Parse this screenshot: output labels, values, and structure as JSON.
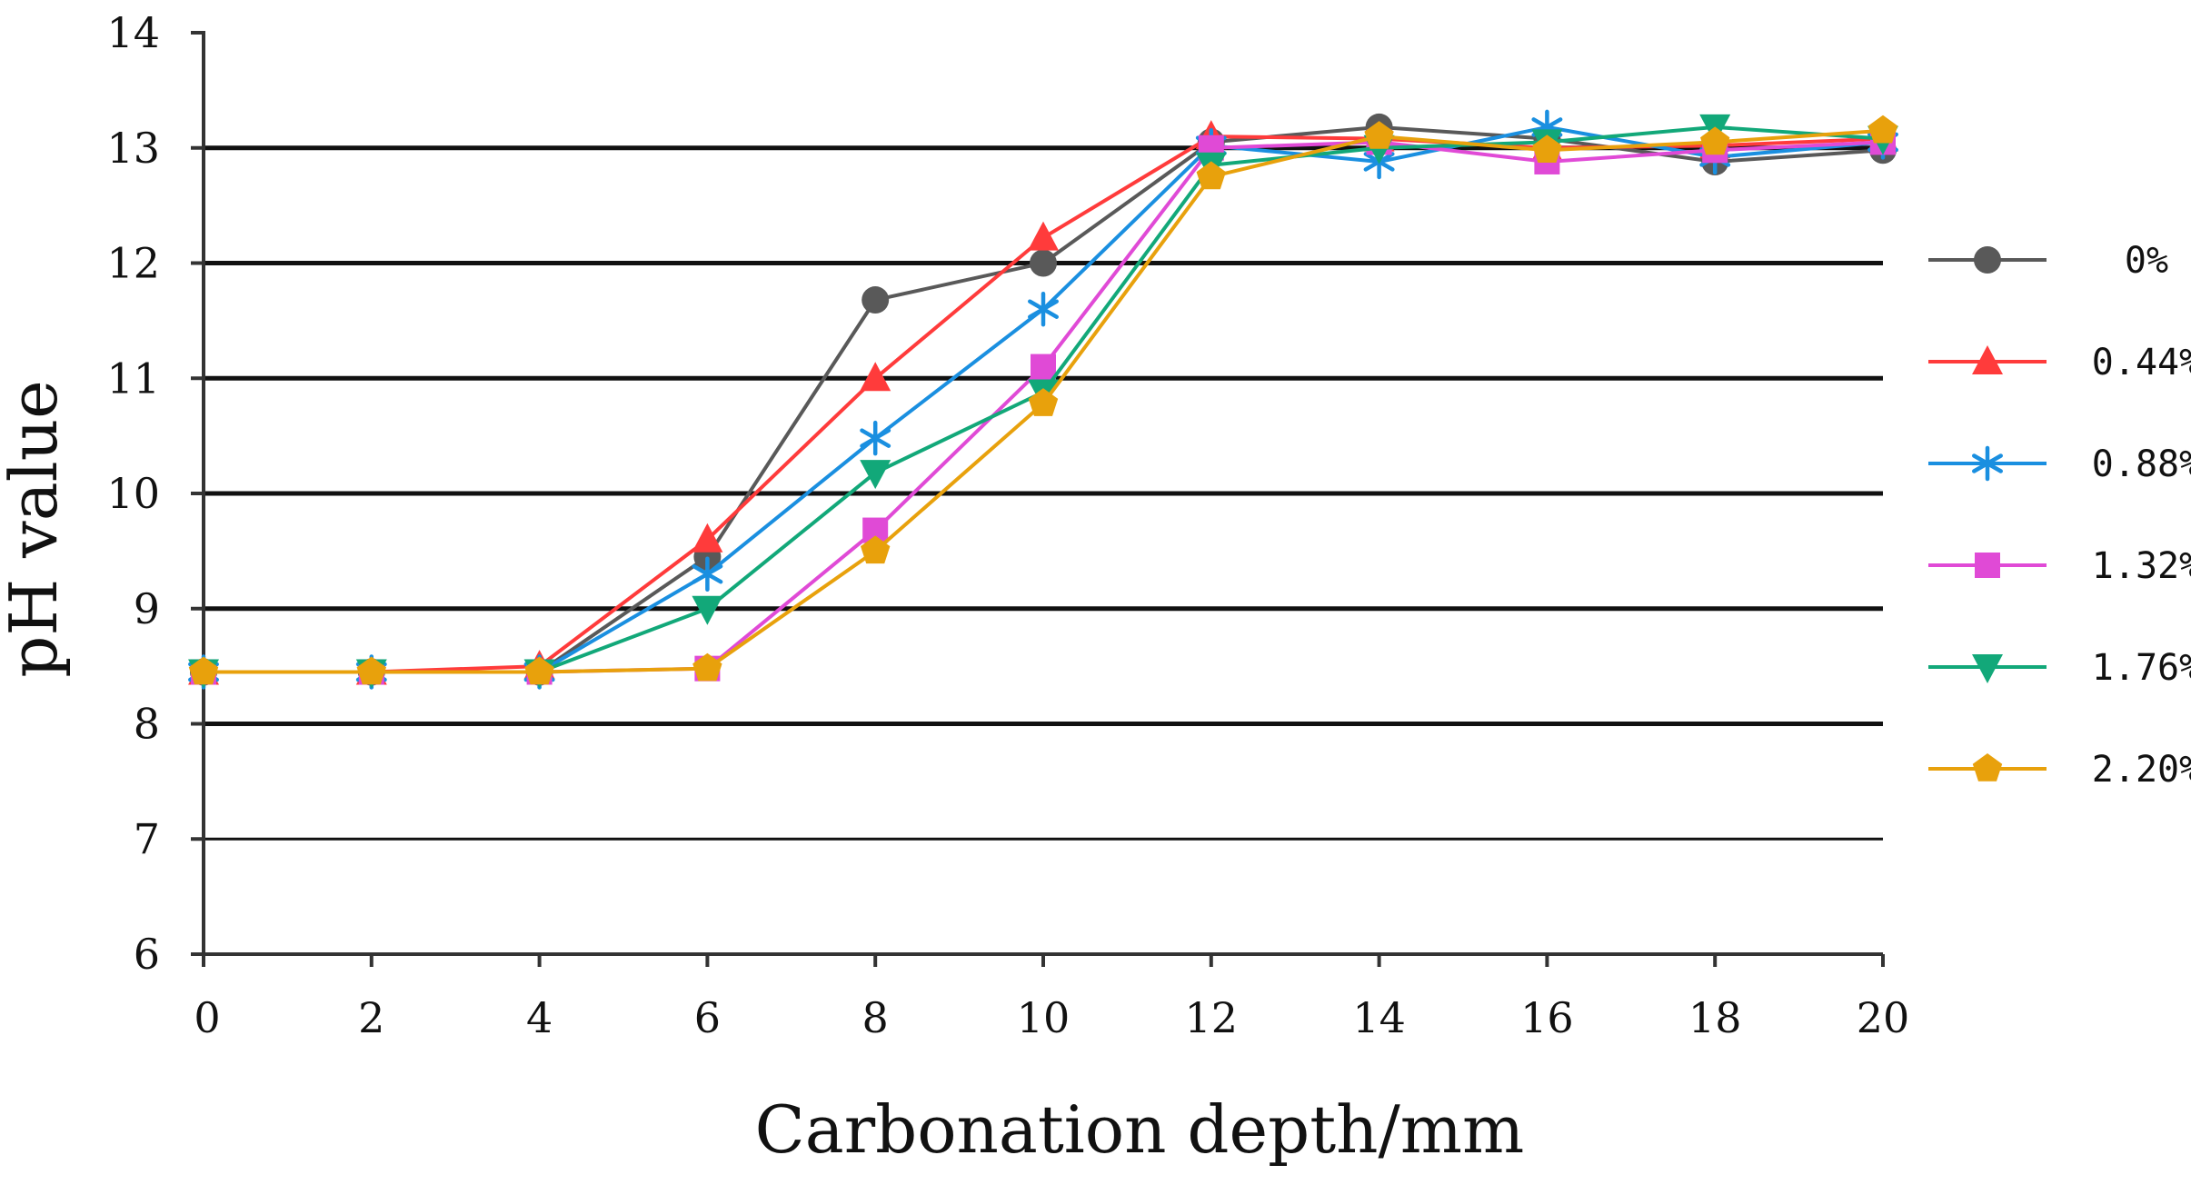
{
  "chart_data": {
    "type": "line",
    "title": "",
    "xlabel": "Carbonation depth/mm",
    "ylabel": "pH value",
    "x": [
      0,
      2,
      4,
      6,
      8,
      10,
      12,
      14,
      16,
      18,
      20
    ],
    "xlim": [
      0,
      20
    ],
    "ylim": [
      6,
      14
    ],
    "xticks": [
      0,
      2,
      4,
      6,
      8,
      10,
      12,
      14,
      16,
      18,
      20
    ],
    "yticks": [
      6,
      7,
      8,
      9,
      10,
      11,
      12,
      13,
      14
    ],
    "grid": "horizontal",
    "legend_position": "right",
    "series": [
      {
        "name": "0%",
        "color": "#595959",
        "marker": "circle",
        "values": [
          8.45,
          8.45,
          8.45,
          9.45,
          11.68,
          12.0,
          13.05,
          13.18,
          13.08,
          12.88,
          12.98
        ]
      },
      {
        "name": "0.44%",
        "color": "#ff3b3b",
        "marker": "triangle-up",
        "values": [
          8.45,
          8.45,
          8.5,
          9.6,
          11.0,
          12.22,
          13.1,
          13.08,
          13.0,
          13.02,
          13.08
        ]
      },
      {
        "name": "0.88%",
        "color": "#1a8fe0",
        "marker": "asterisk",
        "values": [
          8.45,
          8.45,
          8.45,
          9.3,
          10.48,
          11.6,
          13.02,
          12.88,
          13.18,
          12.92,
          13.05
        ]
      },
      {
        "name": "1.32%",
        "color": "#e04ad6",
        "marker": "square",
        "values": [
          8.45,
          8.45,
          8.45,
          8.48,
          9.68,
          11.1,
          13.0,
          13.05,
          12.88,
          12.98,
          13.05
        ]
      },
      {
        "name": "1.76%",
        "color": "#12a879",
        "marker": "triangle-down",
        "values": [
          8.45,
          8.45,
          8.45,
          9.0,
          10.18,
          10.88,
          12.85,
          13.0,
          13.05,
          13.18,
          13.08
        ]
      },
      {
        "name": "2.20%",
        "color": "#e8a10c",
        "marker": "pentagon",
        "values": [
          8.45,
          8.45,
          8.45,
          8.48,
          9.5,
          10.78,
          12.75,
          13.1,
          12.98,
          13.05,
          13.15
        ]
      }
    ]
  }
}
